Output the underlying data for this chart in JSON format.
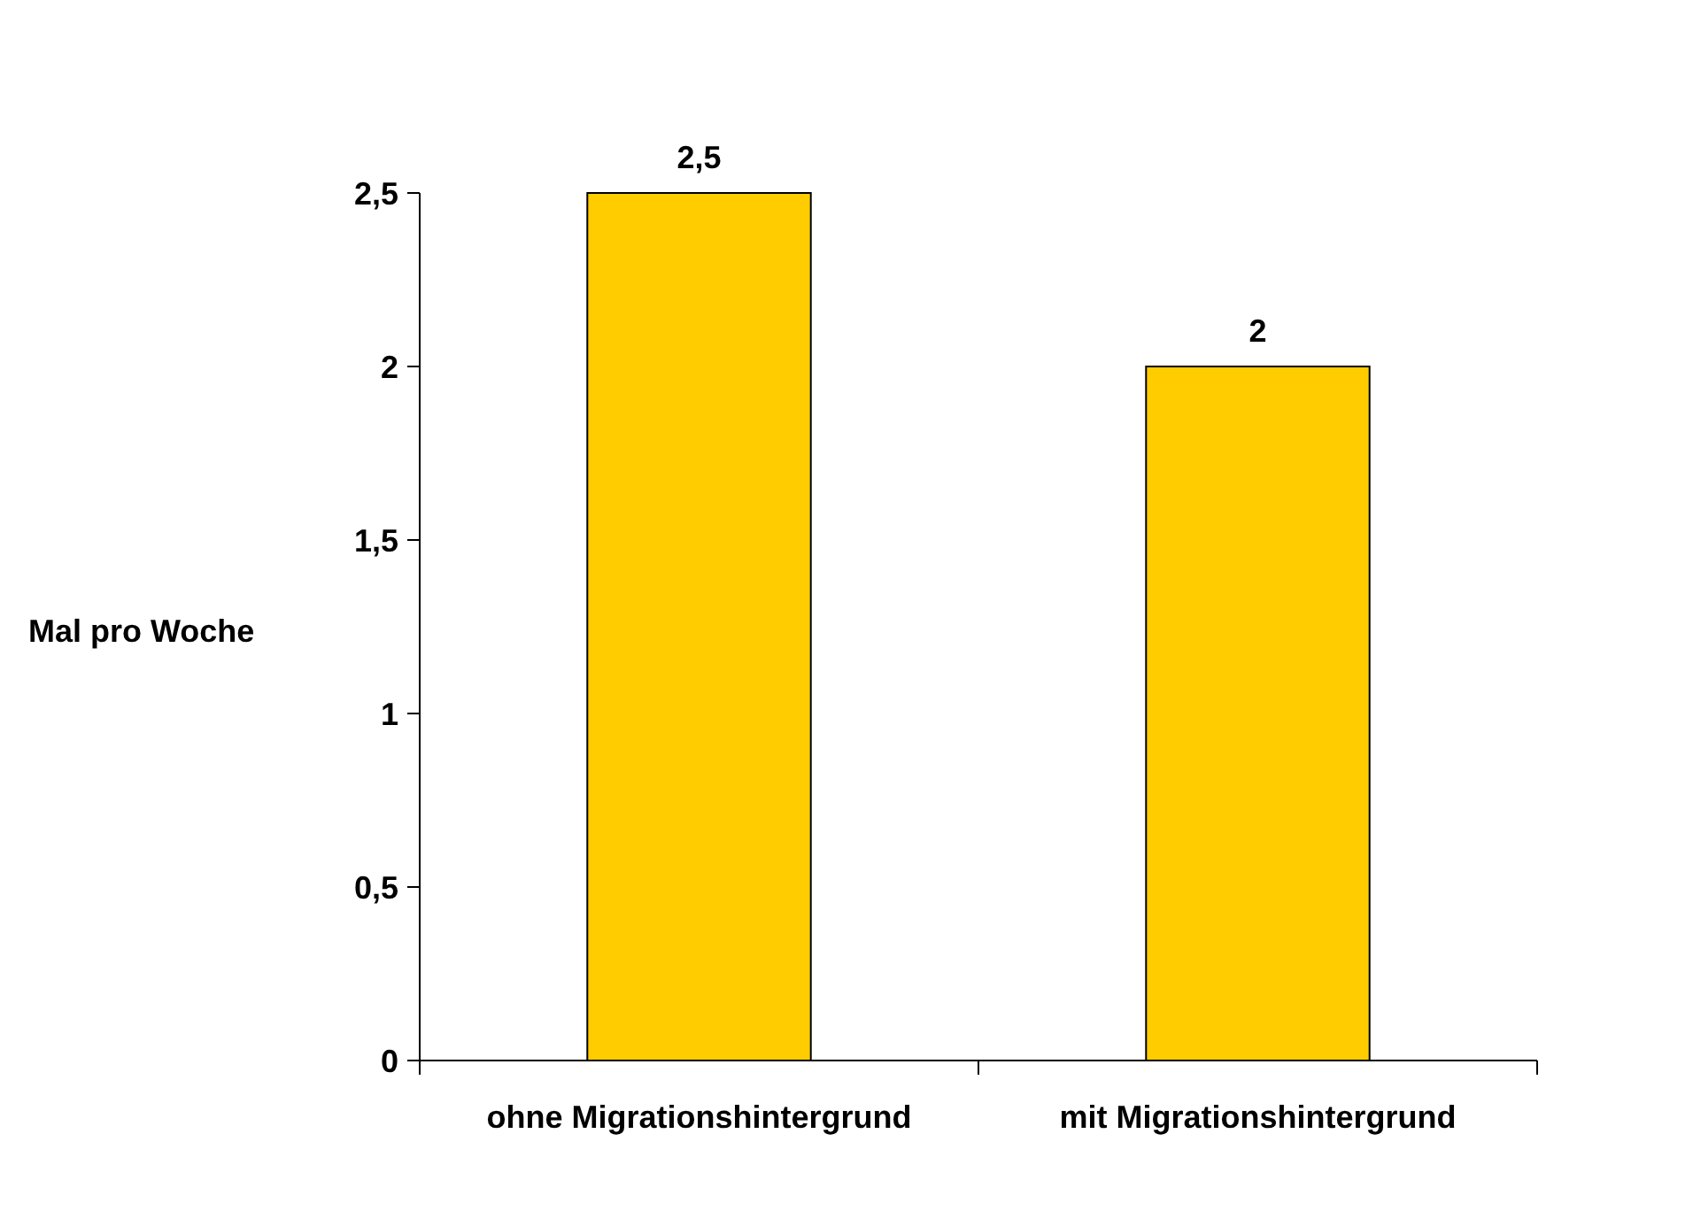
{
  "chart_data": {
    "type": "bar",
    "ylabel": "Mal pro Woche",
    "categories": [
      "ohne Migrationshintergrund",
      "mit Migrationshintergrund"
    ],
    "values": [
      2.5,
      2
    ],
    "color": "#ffcc00",
    "value_labels": [
      "2,5",
      "2"
    ],
    "ylim": [
      0,
      2.5
    ],
    "yticks": [
      0,
      {
        "value": 0.5,
        "label": "0,5"
      },
      1,
      {
        "value": 1.5,
        "label": "1,5"
      },
      2,
      {
        "value": 2.5,
        "label": "2,5"
      }
    ],
    "grid": false
  }
}
